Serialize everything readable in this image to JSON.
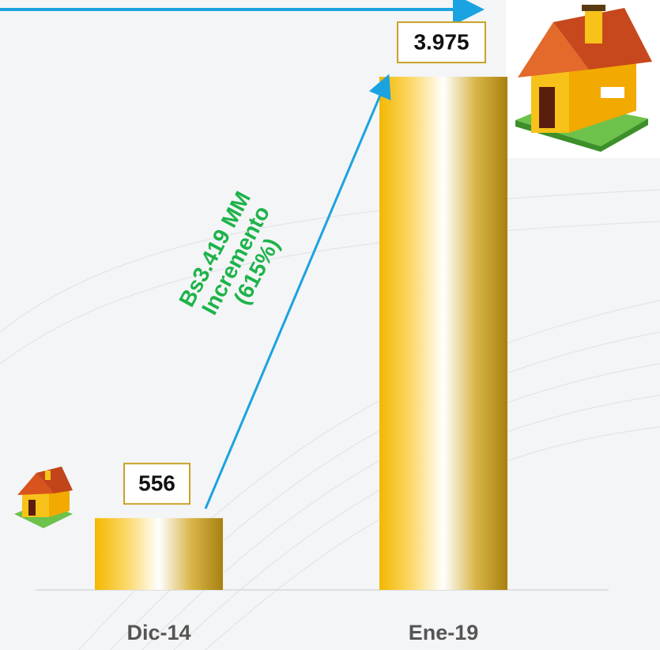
{
  "chart_data": {
    "type": "bar",
    "categories": [
      "Dic-14",
      "Ene-19"
    ],
    "values": [
      556,
      3975
    ],
    "value_labels": [
      "556",
      "3.975"
    ],
    "ylim": [
      0,
      4000
    ],
    "annotation": [
      "Bs3.419 MM",
      "Incremento",
      "(615%)"
    ]
  }
}
